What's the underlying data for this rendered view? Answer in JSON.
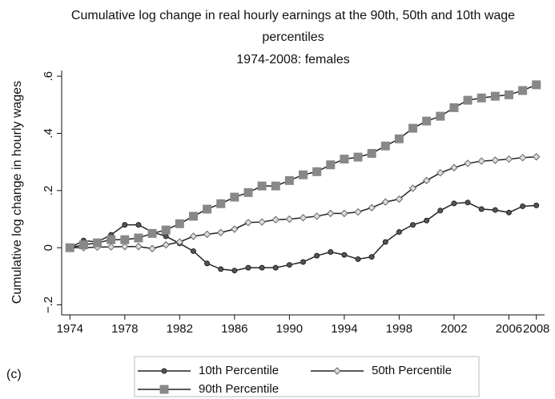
{
  "chart_data": {
    "type": "line",
    "title": "Cumulative log change in real hourly earnings at the 90th, 50th and 10th wage percentiles",
    "subtitle": "1974-2008: females",
    "y_label": "Cumulative log change in  hourly wages",
    "annotation": "(c)",
    "x": [
      1974,
      1975,
      1976,
      1977,
      1978,
      1979,
      1980,
      1981,
      1982,
      1983,
      1984,
      1985,
      1986,
      1987,
      1988,
      1989,
      1990,
      1991,
      1992,
      1993,
      1994,
      1995,
      1996,
      1997,
      1998,
      1999,
      2000,
      2001,
      2002,
      2003,
      2004,
      2005,
      2006,
      2007,
      2008
    ],
    "series": [
      {
        "name": "10th Percentile",
        "color": "#555555",
        "marker": "circle",
        "values": [
          0,
          0.025,
          0.02,
          0.045,
          0.08,
          0.08,
          0.055,
          0.04,
          0.015,
          -0.012,
          -0.055,
          -0.075,
          -0.08,
          -0.07,
          -0.07,
          -0.07,
          -0.06,
          -0.05,
          -0.028,
          -0.015,
          -0.025,
          -0.04,
          -0.032,
          0.02,
          0.055,
          0.08,
          0.095,
          0.13,
          0.155,
          0.158,
          0.135,
          0.132,
          0.123,
          0.145,
          0.148
        ]
      },
      {
        "name": "50th Percentile",
        "color": "#dddddd",
        "marker": "diamond",
        "values": [
          0,
          0,
          0.002,
          0.003,
          0.004,
          0.004,
          -0.003,
          0.01,
          0.02,
          0.04,
          0.047,
          0.053,
          0.065,
          0.088,
          0.09,
          0.098,
          0.1,
          0.105,
          0.11,
          0.12,
          0.12,
          0.125,
          0.14,
          0.16,
          0.17,
          0.208,
          0.235,
          0.262,
          0.28,
          0.295,
          0.303,
          0.306,
          0.31,
          0.315,
          0.318
        ]
      },
      {
        "name": "90th Percentile",
        "color": "#888888",
        "marker": "square",
        "values": [
          0,
          0.01,
          0.017,
          0.028,
          0.028,
          0.034,
          0.05,
          0.062,
          0.084,
          0.11,
          0.135,
          0.154,
          0.177,
          0.193,
          0.216,
          0.216,
          0.235,
          0.255,
          0.266,
          0.29,
          0.31,
          0.317,
          0.33,
          0.356,
          0.381,
          0.418,
          0.443,
          0.46,
          0.49,
          0.516,
          0.524,
          0.53,
          0.535,
          0.55,
          0.57
        ]
      }
    ],
    "xlim": [
      1973.4,
      2008.6
    ],
    "xticks": [
      1974,
      1978,
      1982,
      1986,
      1990,
      1994,
      1998,
      2002,
      2006,
      2008
    ],
    "ylim": [
      -0.235,
      0.62
    ],
    "yticks": [
      {
        "value": -0.2,
        "label": "−.2"
      },
      0,
      {
        "value": 0.2,
        "label": ".2"
      },
      {
        "value": 0.4,
        "label": ".4"
      },
      {
        "value": 0.6,
        "label": ".6"
      }
    ],
    "grid": false
  }
}
